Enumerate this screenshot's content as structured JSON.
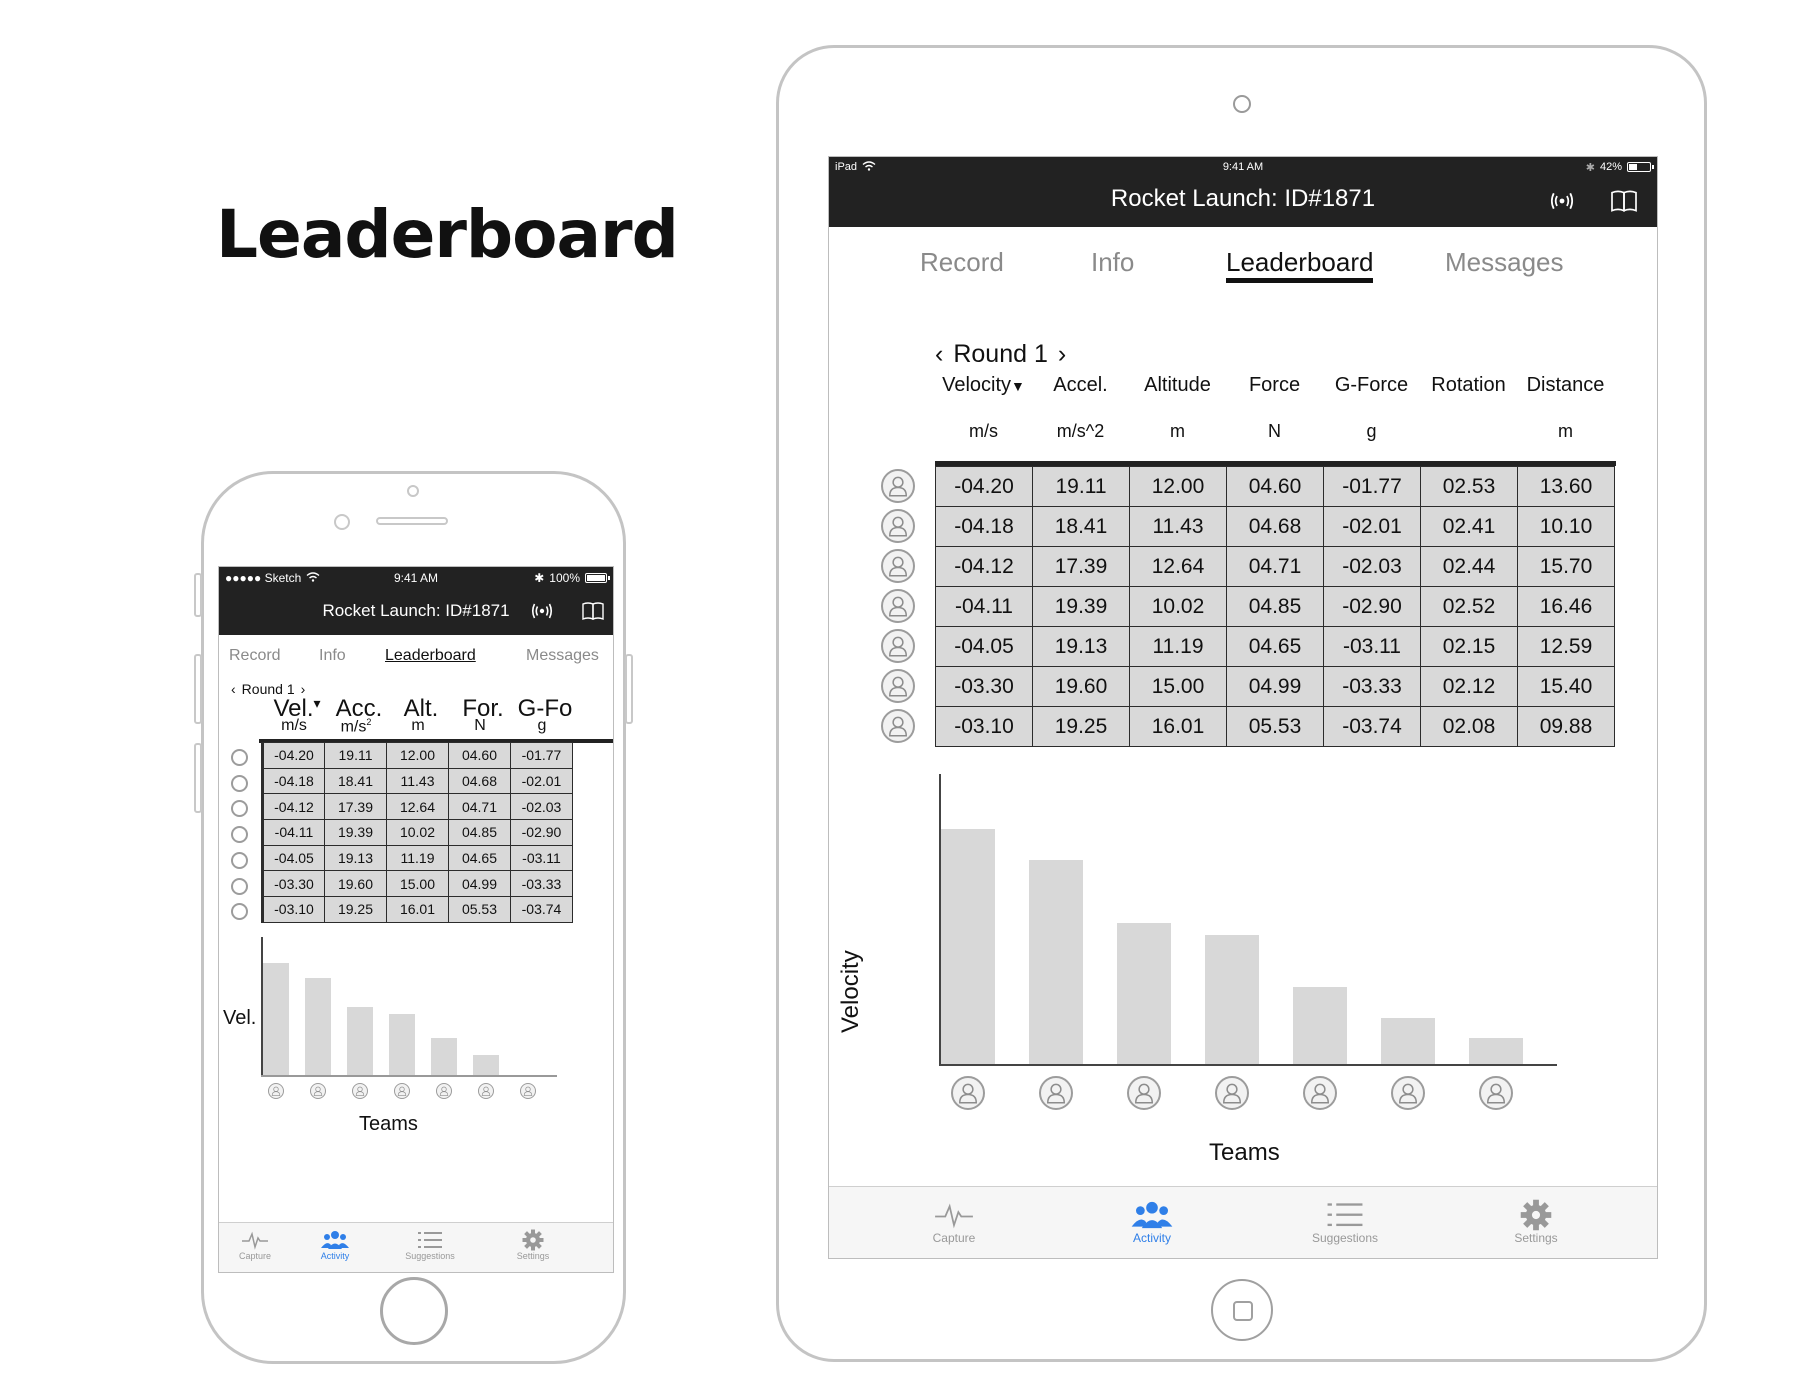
{
  "page_title": "Leaderboard",
  "app_title": "Rocket Launch: ID#1871",
  "phone": {
    "status": {
      "carrier": "●●●●● Sketch",
      "time": "9:41 AM",
      "battery": "100%",
      "battery_level": 1.0
    },
    "tabs": [
      "Record",
      "Info",
      "Leaderboard",
      "Messages"
    ],
    "active_tab": 2,
    "round_label": "Round 1",
    "columns": [
      {
        "label": "Vel.",
        "unit": "m/s",
        "sort": "▾"
      },
      {
        "label": "Acc.",
        "unit": "m/s",
        "sup": "2"
      },
      {
        "label": "Alt.",
        "unit": "m"
      },
      {
        "label": "For.",
        "unit": "N"
      },
      {
        "label": "G-Fo",
        "unit": "g"
      }
    ],
    "y_axis_label": "Vel.",
    "x_axis_label": "Teams",
    "bottom_tabs": [
      "Capture",
      "Activity",
      "Suggestions",
      "Settings"
    ],
    "active_bottom_tab": 1
  },
  "tablet": {
    "status": {
      "device": "iPad",
      "time": "9:41 AM",
      "battery": "42%",
      "battery_level": 0.42
    },
    "tabs": [
      "Record",
      "Info",
      "Leaderboard",
      "Messages"
    ],
    "active_tab": 2,
    "round_label": "Round 1",
    "columns": [
      {
        "label": "Velocity",
        "unit": "m/s",
        "sort": "▼"
      },
      {
        "label": "Accel.",
        "unit": "m/s^2"
      },
      {
        "label": "Altitude",
        "unit": "m"
      },
      {
        "label": "Force",
        "unit": "N"
      },
      {
        "label": "G-Force",
        "unit": "g"
      },
      {
        "label": "Rotation",
        "unit": ""
      },
      {
        "label": "Distance",
        "unit": "m"
      }
    ],
    "y_axis_label": "Velocity",
    "x_axis_label": "Teams",
    "bottom_tabs": [
      "Capture",
      "Activity",
      "Suggestions",
      "Settings"
    ],
    "active_bottom_tab": 1
  },
  "rows": [
    [
      "-04.20",
      "19.11",
      "12.00",
      "04.60",
      "-01.77",
      "02.53",
      "13.60"
    ],
    [
      "-04.18",
      "18.41",
      "11.43",
      "04.68",
      "-02.01",
      "02.41",
      "10.10"
    ],
    [
      "-04.12",
      "17.39",
      "12.64",
      "04.71",
      "-02.03",
      "02.44",
      "15.70"
    ],
    [
      "-04.11",
      "19.39",
      "10.02",
      "04.85",
      "-02.90",
      "02.52",
      "16.46"
    ],
    [
      "-04.05",
      "19.13",
      "11.19",
      "04.65",
      "-03.11",
      "02.15",
      "12.59"
    ],
    [
      "-03.30",
      "19.60",
      "15.00",
      "04.99",
      "-03.33",
      "02.12",
      "15.40"
    ],
    [
      "-03.10",
      "19.25",
      "16.01",
      "05.53",
      "-03.74",
      "02.08",
      "09.88"
    ]
  ],
  "chart_data": [
    {
      "type": "bar",
      "categories": [
        "",
        "",
        "",
        "",
        "",
        "",
        ""
      ],
      "values": [
        0.82,
        0.71,
        0.5,
        0.45,
        0.27,
        0.15,
        0
      ],
      "title": "",
      "xlabel": "Teams",
      "ylabel": "Vel.",
      "ylim": [
        0,
        1
      ],
      "grid": false
    },
    {
      "type": "bar",
      "categories": [
        "",
        "",
        "",
        "",
        "",
        "",
        ""
      ],
      "values": [
        0.82,
        0.71,
        0.49,
        0.45,
        0.27,
        0.16,
        0.09
      ],
      "title": "",
      "xlabel": "Teams",
      "ylabel": "Velocity",
      "ylim": [
        0,
        1
      ],
      "grid": false
    }
  ],
  "colors": {
    "topbar": "#222222",
    "active_tab": "#2f7fe8",
    "bar": "#d8d8d8",
    "cell": "#d9d9d9"
  }
}
